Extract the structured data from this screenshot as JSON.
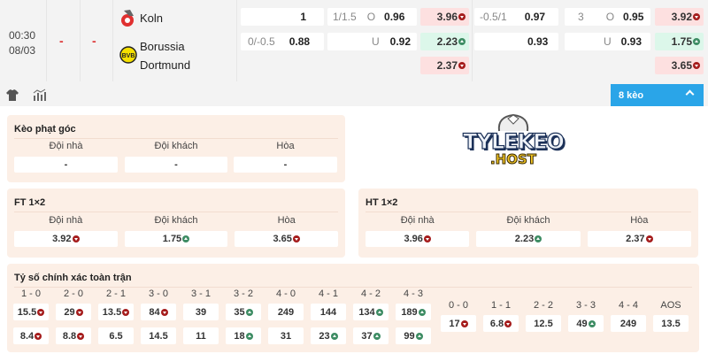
{
  "match": {
    "time": "00:30",
    "date": "08/03",
    "score_home": "-",
    "score_away": "-",
    "home": "Koln",
    "away_line1": "Borussia",
    "away_line2": "Dortmund"
  },
  "odds": {
    "r1": {
      "hdp_line": "",
      "hdp": "1",
      "ou_line": "1/1.5",
      "ou_side": "O",
      "ou": "0.96",
      "x12": {
        "v": "3.96",
        "t": "down"
      },
      "h_hdp_line": "-0.5/1",
      "h_hdp": "0.97",
      "h_ou_line": "3",
      "h_ou_side": "O",
      "h_ou": "0.95",
      "h_x12": {
        "v": "3.92",
        "t": "down"
      }
    },
    "r2": {
      "hdp_line": "0/-0.5",
      "hdp": "0.88",
      "ou_side": "U",
      "ou": "0.92",
      "x12": {
        "v": "2.23",
        "t": "up"
      },
      "h_hdp": "0.93",
      "h_ou_side": "U",
      "h_ou": "0.93",
      "h_x12": {
        "v": "1.75",
        "t": "up"
      }
    },
    "r3": {
      "x12": {
        "v": "2.37",
        "t": "down"
      },
      "h_x12": {
        "v": "3.65",
        "t": "down"
      }
    }
  },
  "toolbar": {
    "icons": [
      "shirt-icon",
      "stats-icon"
    ],
    "more_label": "8 kèo",
    "accent": "#2aa5e8"
  },
  "logo": {
    "text1": "TYLEKEO",
    "text2": ".HOST"
  },
  "corner": {
    "title": "Kèo phạt góc",
    "cols": [
      {
        "label": "Đội nhà",
        "v": "-"
      },
      {
        "label": "Đội khách",
        "v": "-"
      },
      {
        "label": "Hòa",
        "v": "-"
      }
    ]
  },
  "ft": {
    "title": "FT 1×2",
    "cols": [
      {
        "label": "Đội nhà",
        "v": "3.92",
        "t": "down"
      },
      {
        "label": "Đội khách",
        "v": "1.75",
        "t": "up"
      },
      {
        "label": "Hòa",
        "v": "3.65",
        "t": "down"
      }
    ]
  },
  "ht": {
    "title": "HT 1×2",
    "cols": [
      {
        "label": "Đội nhà",
        "v": "3.96",
        "t": "down"
      },
      {
        "label": "Đội khách",
        "v": "2.23",
        "t": "up"
      },
      {
        "label": "Hòa",
        "v": "2.37",
        "t": "down"
      }
    ]
  },
  "cs": {
    "title": "Tỷ số chính xác toàn trận",
    "left": [
      {
        "label": "1 - 0",
        "a": {
          "v": "15.5",
          "t": "down"
        },
        "b": {
          "v": "8.4",
          "t": "down"
        }
      },
      {
        "label": "2 - 0",
        "a": {
          "v": "29",
          "t": "down"
        },
        "b": {
          "v": "8.8",
          "t": "down"
        }
      },
      {
        "label": "2 - 1",
        "a": {
          "v": "13.5",
          "t": "down"
        },
        "b": {
          "v": "6.5",
          "t": ""
        }
      },
      {
        "label": "3 - 0",
        "a": {
          "v": "84",
          "t": "down"
        },
        "b": {
          "v": "14.5",
          "t": ""
        }
      },
      {
        "label": "3 - 1",
        "a": {
          "v": "39",
          "t": ""
        },
        "b": {
          "v": "11",
          "t": ""
        }
      },
      {
        "label": "3 - 2",
        "a": {
          "v": "35",
          "t": "up"
        },
        "b": {
          "v": "18",
          "t": "up"
        }
      },
      {
        "label": "4 - 0",
        "a": {
          "v": "249",
          "t": ""
        },
        "b": {
          "v": "31",
          "t": ""
        }
      },
      {
        "label": "4 - 1",
        "a": {
          "v": "144",
          "t": ""
        },
        "b": {
          "v": "23",
          "t": "up"
        }
      },
      {
        "label": "4 - 2",
        "a": {
          "v": "134",
          "t": "up"
        },
        "b": {
          "v": "37",
          "t": "up"
        }
      },
      {
        "label": "4 - 3",
        "a": {
          "v": "189",
          "t": "up"
        },
        "b": {
          "v": "99",
          "t": "up"
        }
      }
    ],
    "right": [
      {
        "label": "0 - 0",
        "a": {
          "v": "17",
          "t": "down"
        }
      },
      {
        "label": "1 - 1",
        "a": {
          "v": "6.8",
          "t": "down"
        }
      },
      {
        "label": "2 - 2",
        "a": {
          "v": "12.5",
          "t": ""
        }
      },
      {
        "label": "3 - 3",
        "a": {
          "v": "49",
          "t": "up"
        }
      },
      {
        "label": "4 - 4",
        "a": {
          "v": "249",
          "t": ""
        }
      },
      {
        "label": "AOS",
        "a": {
          "v": "13.5",
          "t": ""
        }
      }
    ]
  },
  "colors": {
    "down_bg": "#fde0e0",
    "up_bg": "#dcf7ea",
    "down_icon": "#a51c1c",
    "up_icon": "#3d8c63",
    "panel_bg": "#fcefe6"
  }
}
